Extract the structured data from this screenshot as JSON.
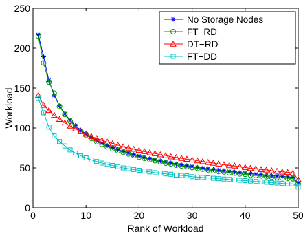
{
  "chart_data": {
    "type": "line",
    "title": "",
    "xlabel": "Rank of Workload",
    "ylabel": "Workload",
    "xlim": [
      0,
      50
    ],
    "ylim": [
      0,
      250
    ],
    "xticks": [
      "0",
      "10",
      "20",
      "30",
      "40",
      "50"
    ],
    "yticks": [
      "0",
      "50",
      "100",
      "150",
      "200",
      "250"
    ],
    "grid": false,
    "legend_position": "top-right",
    "x": [
      1,
      2,
      3,
      4,
      5,
      6,
      7,
      8,
      9,
      10,
      11,
      12,
      13,
      14,
      15,
      16,
      17,
      18,
      19,
      20,
      21,
      22,
      23,
      24,
      25,
      26,
      27,
      28,
      29,
      30,
      31,
      32,
      33,
      34,
      35,
      36,
      37,
      38,
      39,
      40,
      41,
      42,
      43,
      44,
      45,
      46,
      47,
      48,
      49,
      50
    ],
    "series": [
      {
        "name": "No Storage Nodes",
        "color": "#0000ff",
        "marker": "asterisk",
        "values": [
          216.8,
          189.2,
          159.6,
          140.8,
          127.8,
          117.8,
          109.7,
          103.0,
          97.3,
          92.4,
          88.2,
          84.4,
          81.1,
          78.1,
          75.4,
          72.9,
          70.7,
          68.6,
          66.6,
          64.8,
          63.2,
          61.6,
          60.1,
          58.7,
          57.4,
          56.1,
          54.9,
          53.8,
          52.7,
          51.7,
          50.7,
          49.8,
          48.9,
          48.0,
          47.2,
          46.4,
          45.6,
          44.9,
          44.2,
          43.5,
          42.8,
          42.2,
          41.6,
          41.0,
          40.4,
          39.8,
          39.3,
          38.8,
          38.3,
          31.4
        ]
      },
      {
        "name": "FT−RD",
        "color": "#009900",
        "marker": "circle",
        "values": [
          215.0,
          181.5,
          157.5,
          143.5,
          127.0,
          117.0,
          108.5,
          101.5,
          96.0,
          91.0,
          87.0,
          83.0,
          79.5,
          76.5,
          74.0,
          71.5,
          69.5,
          67.5,
          65.5,
          63.5,
          62.0,
          60.5,
          59.0,
          57.5,
          56.0,
          55.0,
          53.5,
          52.5,
          51.5,
          50.5,
          49.5,
          48.5,
          47.5,
          46.5,
          45.5,
          45.0,
          44.0,
          43.5,
          42.5,
          42.0,
          41.0,
          40.5,
          40.0,
          39.0,
          38.5,
          38.0,
          37.5,
          37.0,
          36.5,
          30.0
        ]
      },
      {
        "name": "DT−RD",
        "color": "#ff0000",
        "marker": "triangle",
        "values": [
          141.0,
          128.5,
          122.0,
          116.0,
          111.0,
          106.5,
          102.5,
          99.0,
          95.5,
          92.5,
          89.5,
          87.0,
          84.5,
          82.5,
          80.5,
          78.5,
          76.5,
          75.0,
          73.5,
          72.0,
          70.5,
          69.0,
          68.0,
          66.5,
          65.5,
          64.0,
          63.0,
          62.0,
          61.0,
          60.0,
          59.0,
          58.0,
          57.0,
          56.0,
          55.0,
          54.0,
          53.0,
          52.5,
          51.5,
          50.5,
          49.5,
          49.0,
          48.0,
          47.5,
          46.5,
          46.0,
          45.0,
          44.5,
          43.5,
          35.5
        ]
      },
      {
        "name": "FT−DD",
        "color": "#00bfbf",
        "marker": "square",
        "values": [
          137.0,
          119.0,
          101.0,
          90.0,
          83.0,
          77.5,
          72.5,
          68.5,
          65.0,
          62.5,
          60.0,
          58.0,
          56.0,
          54.5,
          53.0,
          51.5,
          50.0,
          49.0,
          48.0,
          47.0,
          46.0,
          45.0,
          44.0,
          43.5,
          42.5,
          42.0,
          41.0,
          40.5,
          40.0,
          39.0,
          38.5,
          38.0,
          37.5,
          37.0,
          36.5,
          36.0,
          35.5,
          35.0,
          34.5,
          34.0,
          33.5,
          33.0,
          32.5,
          32.0,
          31.5,
          31.0,
          30.5,
          30.0,
          30.0,
          26.0
        ]
      }
    ]
  }
}
